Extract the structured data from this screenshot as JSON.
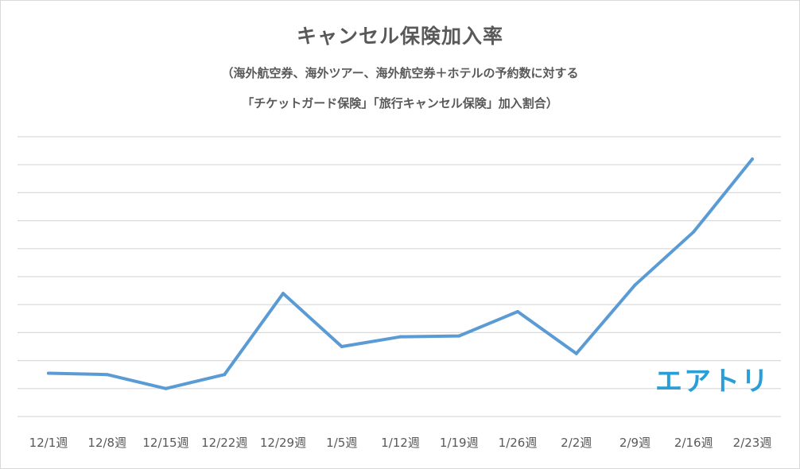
{
  "chart_data": {
    "type": "line",
    "title": "キャンセル保険加入率",
    "subtitle_line1": "（海外航空券、海外ツアー、海外航空券＋ホテルの予約数に対する",
    "subtitle_line2": "「チケットガード保険」「旅行キャンセル保険」加入割合）",
    "categories": [
      "12/1週",
      "12/8週",
      "12/15週",
      "12/22週",
      "12/29週",
      "1/5週",
      "1/12週",
      "1/19週",
      "1/26週",
      "2/2週",
      "2/9週",
      "2/16週",
      "2/23週"
    ],
    "series": [
      {
        "values": [
          1.55,
          1.5,
          1.0,
          1.5,
          4.4,
          2.5,
          2.85,
          2.88,
          3.75,
          2.25,
          4.7,
          6.6,
          9.2
        ]
      }
    ],
    "ylim": [
      0,
      10
    ],
    "y_tick_count": 11,
    "y_tick_labels_shown": false,
    "grid": true,
    "line_color": "#5b9bd5",
    "grid_color": "#d9d9d9"
  },
  "logo": {
    "text": "エアトリ",
    "color": "#2a9fd6"
  }
}
